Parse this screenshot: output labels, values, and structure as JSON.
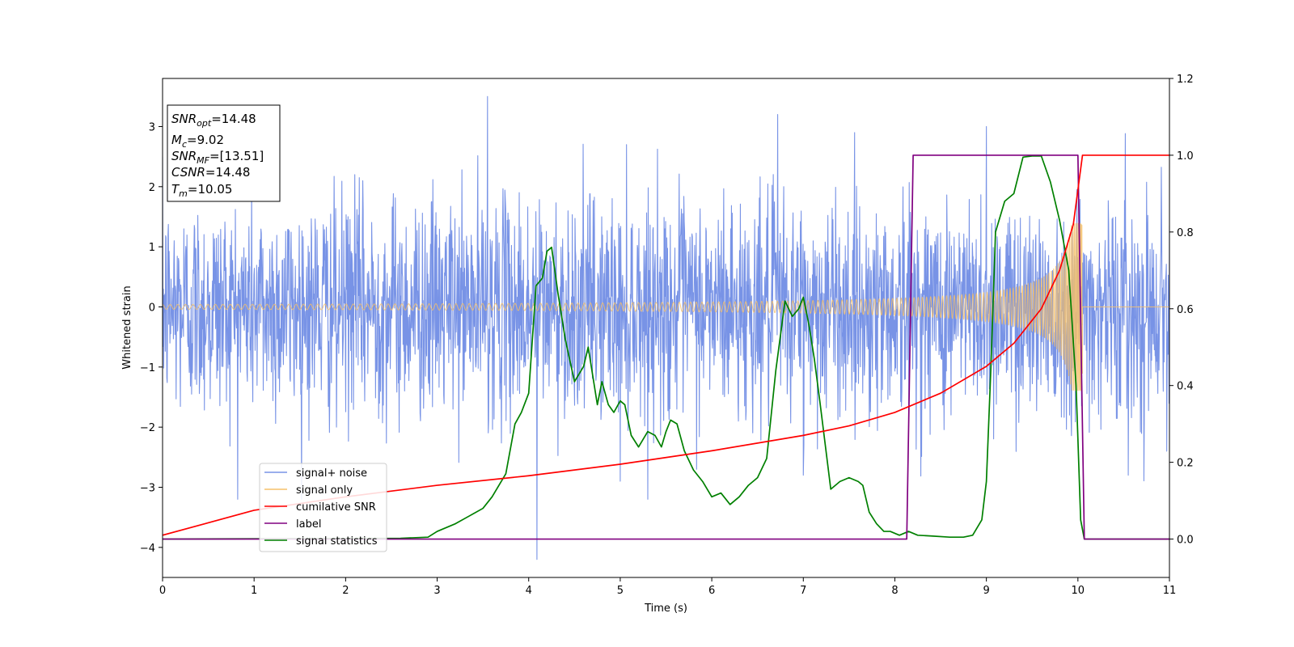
{
  "chart_data": {
    "type": "line",
    "xlabel": "Time (s)",
    "ylabel": "Whitened strain",
    "xlim": [
      0,
      11
    ],
    "ylim": [
      -4.5,
      3.8
    ],
    "y2lim": [
      -0.1,
      1.2
    ],
    "x_ticks": [
      "0",
      "1",
      "2",
      "3",
      "4",
      "5",
      "6",
      "7",
      "8",
      "9",
      "10",
      "11"
    ],
    "y_ticks": [
      "3",
      "2",
      "1",
      "0",
      "−1",
      "−2",
      "−3",
      "−4"
    ],
    "y2_ticks": [
      "1.2",
      "1.0",
      "0.8",
      "0.6",
      "0.4",
      "0.2",
      "0.0"
    ],
    "grid": false,
    "legend_position": "lower-left",
    "info_box": {
      "snr_opt": {
        "base": "SNR",
        "sub": "opt",
        "value": "=14.48"
      },
      "mc": {
        "base": "M",
        "sub": "c",
        "value": "=9.02"
      },
      "snr_mf": {
        "base": "SNR",
        "sub": "MF",
        "value": "=[13.51]"
      },
      "csnr": {
        "base": "CSNR",
        "sub": "",
        "value": "=14.48"
      },
      "tm": {
        "base": "T",
        "sub": "m",
        "value": "=10.05"
      }
    },
    "series": [
      {
        "name": "signal+ noise",
        "color": "#7893e6",
        "axis": "left",
        "description_values": {
          "noise_std": 0.9,
          "t_end": 11,
          "spikes": [
            [
              1.9,
              -2.0
            ],
            [
              2.1,
              2.2
            ],
            [
              3.55,
              3.5
            ],
            [
              4.09,
              -4.2
            ],
            [
              5.0,
              -2.9
            ],
            [
              6.72,
              3.2
            ],
            [
              7.0,
              -2.8
            ],
            [
              9.0,
              3.0
            ],
            [
              10.55,
              -2.8
            ]
          ]
        }
      },
      {
        "name": "signal only",
        "color": "#f5c06a",
        "axis": "left",
        "chirp": {
          "t_merge": 10.05,
          "amplitude_start": 0.04,
          "amplitude_end": 1.4
        }
      },
      {
        "name": "cumilative SNR",
        "color": "#ff0000",
        "axis": "right",
        "x": [
          0,
          1,
          2,
          3,
          4,
          5,
          6,
          7,
          7.5,
          8,
          8.5,
          9,
          9.3,
          9.6,
          9.8,
          9.95,
          10.05,
          11
        ],
        "y": [
          0.01,
          0.075,
          0.11,
          0.14,
          0.165,
          0.195,
          0.23,
          0.27,
          0.295,
          0.33,
          0.38,
          0.45,
          0.51,
          0.6,
          0.7,
          0.82,
          1.0,
          1.0
        ]
      },
      {
        "name": "label",
        "color": "#800080",
        "axis": "right",
        "x": [
          0,
          8.13,
          8.2,
          10.0,
          10.07,
          11
        ],
        "y": [
          0,
          0,
          1,
          1,
          0,
          0
        ]
      },
      {
        "name": "signal statistics",
        "color": "#008000",
        "axis": "right",
        "x": [
          0,
          2.6,
          2.9,
          3.0,
          3.2,
          3.35,
          3.5,
          3.6,
          3.75,
          3.85,
          3.92,
          4.0,
          4.08,
          4.15,
          4.2,
          4.25,
          4.32,
          4.4,
          4.5,
          4.6,
          4.65,
          4.75,
          4.8,
          4.87,
          4.93,
          5.0,
          5.05,
          5.12,
          5.2,
          5.3,
          5.38,
          5.45,
          5.5,
          5.55,
          5.62,
          5.7,
          5.8,
          5.9,
          6.0,
          6.1,
          6.2,
          6.3,
          6.4,
          6.5,
          6.6,
          6.7,
          6.8,
          6.88,
          6.95,
          7.0,
          7.06,
          7.12,
          7.18,
          7.3,
          7.4,
          7.5,
          7.6,
          7.65,
          7.72,
          7.8,
          7.88,
          7.95,
          8.05,
          8.15,
          8.25,
          8.4,
          8.6,
          8.75,
          8.85,
          8.95,
          9.0,
          9.05,
          9.1,
          9.2,
          9.3,
          9.4,
          9.5,
          9.6,
          9.7,
          9.8,
          9.9,
          9.98,
          10.03,
          10.07,
          10.15,
          11
        ],
        "y": [
          0.0,
          0.002,
          0.005,
          0.02,
          0.04,
          0.06,
          0.08,
          0.11,
          0.17,
          0.3,
          0.33,
          0.38,
          0.66,
          0.68,
          0.75,
          0.76,
          0.64,
          0.52,
          0.41,
          0.45,
          0.5,
          0.35,
          0.41,
          0.35,
          0.33,
          0.36,
          0.35,
          0.27,
          0.24,
          0.28,
          0.27,
          0.24,
          0.28,
          0.31,
          0.3,
          0.23,
          0.18,
          0.15,
          0.11,
          0.12,
          0.09,
          0.11,
          0.14,
          0.16,
          0.21,
          0.44,
          0.62,
          0.58,
          0.6,
          0.63,
          0.56,
          0.47,
          0.36,
          0.13,
          0.15,
          0.16,
          0.15,
          0.14,
          0.07,
          0.04,
          0.02,
          0.02,
          0.01,
          0.02,
          0.01,
          0.008,
          0.005,
          0.005,
          0.01,
          0.05,
          0.15,
          0.45,
          0.8,
          0.88,
          0.9,
          0.995,
          0.998,
          0.998,
          0.93,
          0.83,
          0.7,
          0.4,
          0.05,
          0.0,
          0.0,
          0.0
        ]
      }
    ]
  }
}
